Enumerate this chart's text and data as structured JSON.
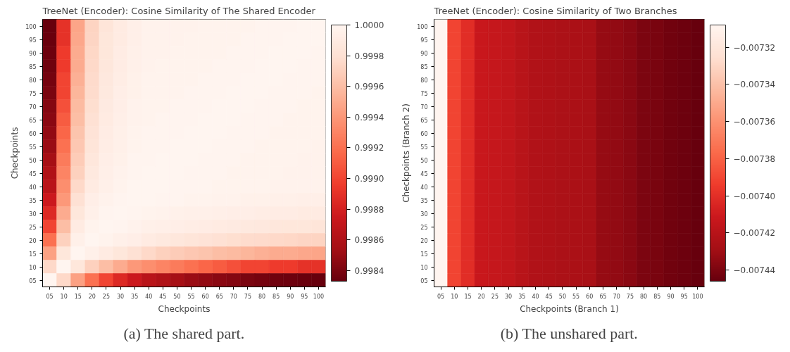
{
  "chart_data": [
    {
      "type": "heatmap",
      "title": "TreeNet (Encoder): Cosine Similarity of The Shared Encoder",
      "xlabel": "Checkpoints",
      "ylabel": "Checkpoints",
      "categories": [
        "05",
        "10",
        "15",
        "20",
        "25",
        "30",
        "35",
        "40",
        "45",
        "50",
        "55",
        "60",
        "65",
        "70",
        "75",
        "80",
        "85",
        "90",
        "95",
        "100"
      ],
      "y_categories": [
        "100",
        "95",
        "90",
        "85",
        "80",
        "75",
        "70",
        "65",
        "60",
        "55",
        "50",
        "45",
        "40",
        "35",
        "30",
        "25",
        "20",
        "15",
        "10",
        "05"
      ],
      "cells": [
        [
          0.99833,
          0.9989,
          0.99947,
          0.99972,
          0.99984,
          0.9999,
          0.99994,
          0.99997,
          0.99997,
          0.99997,
          0.99997,
          0.99998,
          0.99998,
          0.99998,
          0.99998,
          0.99999,
          0.99999,
          0.99999,
          1.0,
          1.0
        ],
        [
          0.99834,
          0.9989,
          0.99948,
          0.99973,
          0.99985,
          0.9999,
          0.99994,
          0.99997,
          0.99997,
          0.99997,
          0.99998,
          0.99998,
          0.99998,
          0.99998,
          0.99999,
          0.99999,
          0.99999,
          1.0,
          1.0,
          1.0
        ],
        [
          0.99835,
          0.99895,
          0.9995,
          0.99974,
          0.99985,
          0.99991,
          0.99995,
          0.99997,
          0.99997,
          0.99998,
          0.99998,
          0.99998,
          0.99998,
          0.99999,
          0.99999,
          0.99999,
          1.0,
          1.0,
          1.0,
          0.99999
        ],
        [
          0.99836,
          0.99895,
          0.9995,
          0.99975,
          0.99986,
          0.99991,
          0.99995,
          0.99997,
          0.99998,
          0.99998,
          0.99998,
          0.99998,
          0.99999,
          0.99999,
          0.99999,
          1.0,
          1.0,
          1.0,
          0.99999,
          0.99999
        ],
        [
          0.99838,
          0.999,
          0.99953,
          0.99976,
          0.99987,
          0.99992,
          0.99996,
          0.99998,
          0.99998,
          0.99998,
          0.99998,
          0.99999,
          0.99999,
          0.99999,
          1.0,
          1.0,
          1.0,
          0.99999,
          0.99999,
          0.99999
        ],
        [
          0.9984,
          0.999,
          0.99955,
          0.99977,
          0.99988,
          0.99993,
          0.99996,
          0.99998,
          0.99998,
          0.99998,
          0.99999,
          0.99999,
          0.99999,
          1.0,
          1.0,
          1.0,
          0.99999,
          0.99999,
          0.99999,
          0.99998
        ],
        [
          0.99843,
          0.99905,
          0.99958,
          0.99978,
          0.99989,
          0.99993,
          0.99997,
          0.99998,
          0.99998,
          0.99999,
          0.99999,
          0.99999,
          1.0,
          1.0,
          1.0,
          0.99999,
          0.99999,
          0.99999,
          0.99998,
          0.99998
        ],
        [
          0.99845,
          0.9991,
          0.9996,
          0.9998,
          0.9999,
          0.99994,
          0.99997,
          0.99998,
          0.99999,
          0.99999,
          0.99999,
          1.0,
          1.0,
          1.0,
          0.99999,
          0.99999,
          0.99999,
          0.99998,
          0.99998,
          0.99998
        ],
        [
          0.99848,
          0.99915,
          0.99963,
          0.99982,
          0.99991,
          0.99995,
          0.99998,
          0.99999,
          0.99999,
          0.99999,
          1.0,
          1.0,
          1.0,
          0.99999,
          0.99999,
          0.99999,
          0.99998,
          0.99998,
          0.99998,
          0.99998
        ],
        [
          0.9985,
          0.9992,
          0.99965,
          0.99984,
          0.99992,
          0.99995,
          0.99998,
          0.99999,
          0.99999,
          1.0,
          1.0,
          1.0,
          0.99999,
          0.99999,
          0.99999,
          0.99998,
          0.99998,
          0.99998,
          0.99998,
          0.99997
        ],
        [
          0.99855,
          0.99925,
          0.99968,
          0.99986,
          0.99993,
          0.99996,
          0.99999,
          0.99999,
          1.0,
          1.0,
          1.0,
          0.99999,
          0.99999,
          0.99999,
          0.99998,
          0.99998,
          0.99998,
          0.99998,
          0.99997,
          0.99997
        ],
        [
          0.9986,
          0.9993,
          0.9997,
          0.99988,
          0.99994,
          0.99997,
          0.99999,
          1.0,
          1.0,
          1.0,
          0.99999,
          0.99999,
          0.99999,
          0.99998,
          0.99998,
          0.99998,
          0.99998,
          0.99997,
          0.99997,
          0.99997
        ],
        [
          0.99865,
          0.99935,
          0.99975,
          0.9999,
          0.99995,
          0.99998,
          1.0,
          1.0,
          1.0,
          0.99999,
          0.99999,
          0.99999,
          0.99998,
          0.99998,
          0.99998,
          0.99998,
          0.99997,
          0.99997,
          0.99997,
          0.99997
        ],
        [
          0.99875,
          0.9994,
          0.9998,
          0.99993,
          0.99997,
          0.99999,
          1.0,
          1.0,
          0.99999,
          0.99999,
          0.99998,
          0.99998,
          0.99997,
          0.99997,
          0.99996,
          0.99996,
          0.99995,
          0.99995,
          0.99994,
          0.99994
        ],
        [
          0.99885,
          0.9995,
          0.99985,
          0.99995,
          0.99999,
          1.0,
          0.99999,
          0.99998,
          0.99997,
          0.99996,
          0.99995,
          0.99995,
          0.99994,
          0.99993,
          0.99993,
          0.99992,
          0.99991,
          0.99991,
          0.9999,
          0.9999
        ],
        [
          0.999,
          0.9996,
          0.9999,
          0.99998,
          1.0,
          0.99999,
          0.99997,
          0.99995,
          0.99994,
          0.99993,
          0.99992,
          0.99991,
          0.9999,
          0.99989,
          0.99988,
          0.99987,
          0.99986,
          0.99985,
          0.99985,
          0.99984
        ],
        [
          0.9992,
          0.9997,
          0.99995,
          1.0,
          0.99998,
          0.99995,
          0.99993,
          0.9999,
          0.99988,
          0.99986,
          0.99984,
          0.99982,
          0.9998,
          0.99978,
          0.99977,
          0.99976,
          0.99975,
          0.99974,
          0.99973,
          0.99972
        ],
        [
          0.99945,
          0.99985,
          1.0,
          0.99995,
          0.9999,
          0.99985,
          0.9998,
          0.99975,
          0.9997,
          0.99968,
          0.99965,
          0.99963,
          0.9996,
          0.99958,
          0.99955,
          0.99953,
          0.9995,
          0.9995,
          0.99948,
          0.99947
        ],
        [
          0.99975,
          1.0,
          0.99985,
          0.9997,
          0.9996,
          0.9995,
          0.9994,
          0.99935,
          0.9993,
          0.99925,
          0.9992,
          0.99915,
          0.9991,
          0.99905,
          0.999,
          0.999,
          0.99895,
          0.99895,
          0.9989,
          0.9989
        ],
        [
          1.0,
          0.99975,
          0.99945,
          0.9992,
          0.999,
          0.99885,
          0.99875,
          0.99865,
          0.9986,
          0.99855,
          0.9985,
          0.99848,
          0.99845,
          0.99843,
          0.9984,
          0.99838,
          0.99836,
          0.99835,
          0.99834,
          0.99833
        ]
      ],
      "clim": [
        0.99833,
        1.0
      ],
      "cticks": [
        {
          "value": 1.0,
          "label": "1.0000"
        },
        {
          "value": 0.9998,
          "label": "0.9998"
        },
        {
          "value": 0.9996,
          "label": "0.9996"
        },
        {
          "value": 0.9994,
          "label": "0.9994"
        },
        {
          "value": 0.9992,
          "label": "0.9992"
        },
        {
          "value": 0.999,
          "label": "0.9990"
        },
        {
          "value": 0.9988,
          "label": "0.9988"
        },
        {
          "value": 0.9986,
          "label": "0.9986"
        },
        {
          "value": 0.9984,
          "label": "0.9984"
        }
      ],
      "annotations": [
        "(a) The shared part."
      ]
    },
    {
      "type": "heatmap",
      "title": "TreeNet (Encoder): Cosine Similarity of Two Branches",
      "xlabel": "Checkpoints (Branch 1)",
      "ylabel": "Checkpoints (Branch 2)",
      "categories": [
        "05",
        "10",
        "15",
        "20",
        "25",
        "30",
        "35",
        "40",
        "45",
        "50",
        "55",
        "60",
        "65",
        "70",
        "75",
        "80",
        "85",
        "90",
        "95",
        "100"
      ],
      "y_categories": [
        "100",
        "95",
        "90",
        "85",
        "80",
        "75",
        "70",
        "65",
        "60",
        "55",
        "50",
        "45",
        "40",
        "35",
        "30",
        "25",
        "20",
        "15",
        "10",
        "05"
      ],
      "cells": [
        [
          -0.007308,
          -0.007391,
          -0.007401,
          -0.007413,
          -0.007414,
          -0.007416,
          -0.00742,
          -0.007423,
          -0.007424,
          -0.007425,
          -0.007426,
          -0.007427,
          -0.007433,
          -0.007434,
          -0.007436,
          -0.00744,
          -0.007441,
          -0.007443,
          -0.007444,
          -0.007446
        ],
        [
          -0.007308,
          -0.007391,
          -0.007401,
          -0.007413,
          -0.007414,
          -0.007416,
          -0.00742,
          -0.007423,
          -0.007424,
          -0.007425,
          -0.007426,
          -0.007427,
          -0.007433,
          -0.007434,
          -0.007436,
          -0.00744,
          -0.007441,
          -0.007443,
          -0.007444,
          -0.007446
        ],
        [
          -0.007308,
          -0.007391,
          -0.007401,
          -0.007413,
          -0.007414,
          -0.007416,
          -0.00742,
          -0.007423,
          -0.007424,
          -0.007425,
          -0.007426,
          -0.007427,
          -0.007433,
          -0.007434,
          -0.007436,
          -0.00744,
          -0.007441,
          -0.007443,
          -0.007444,
          -0.007446
        ],
        [
          -0.007308,
          -0.007391,
          -0.007401,
          -0.007413,
          -0.007414,
          -0.007416,
          -0.00742,
          -0.007423,
          -0.007424,
          -0.007425,
          -0.007426,
          -0.007427,
          -0.007433,
          -0.007434,
          -0.007436,
          -0.00744,
          -0.007441,
          -0.007443,
          -0.007444,
          -0.007446
        ],
        [
          -0.007308,
          -0.007391,
          -0.007401,
          -0.007413,
          -0.007414,
          -0.007416,
          -0.00742,
          -0.007423,
          -0.007424,
          -0.007425,
          -0.007426,
          -0.007427,
          -0.007433,
          -0.007434,
          -0.007436,
          -0.00744,
          -0.007441,
          -0.007443,
          -0.007444,
          -0.007446
        ],
        [
          -0.007308,
          -0.007391,
          -0.007401,
          -0.007413,
          -0.007414,
          -0.007416,
          -0.00742,
          -0.007423,
          -0.007424,
          -0.007425,
          -0.007426,
          -0.007427,
          -0.007433,
          -0.007434,
          -0.007436,
          -0.00744,
          -0.007441,
          -0.007443,
          -0.007444,
          -0.007446
        ],
        [
          -0.007308,
          -0.007391,
          -0.007401,
          -0.007413,
          -0.007414,
          -0.007416,
          -0.00742,
          -0.007423,
          -0.007424,
          -0.007425,
          -0.007426,
          -0.007427,
          -0.007433,
          -0.007434,
          -0.007436,
          -0.00744,
          -0.007441,
          -0.007443,
          -0.007444,
          -0.007446
        ],
        [
          -0.007308,
          -0.007391,
          -0.007401,
          -0.007413,
          -0.007414,
          -0.007416,
          -0.00742,
          -0.007423,
          -0.007424,
          -0.007425,
          -0.007426,
          -0.007427,
          -0.007433,
          -0.007434,
          -0.007436,
          -0.00744,
          -0.007441,
          -0.007443,
          -0.007444,
          -0.007446
        ],
        [
          -0.007308,
          -0.007391,
          -0.007401,
          -0.007413,
          -0.007414,
          -0.007416,
          -0.00742,
          -0.007423,
          -0.007424,
          -0.007425,
          -0.007426,
          -0.007427,
          -0.007433,
          -0.007434,
          -0.007436,
          -0.00744,
          -0.007441,
          -0.007443,
          -0.007444,
          -0.007446
        ],
        [
          -0.007308,
          -0.007391,
          -0.007401,
          -0.007413,
          -0.007414,
          -0.007416,
          -0.00742,
          -0.007423,
          -0.007424,
          -0.007425,
          -0.007426,
          -0.007427,
          -0.007433,
          -0.007434,
          -0.007436,
          -0.00744,
          -0.007441,
          -0.007443,
          -0.007444,
          -0.007446
        ],
        [
          -0.007308,
          -0.007391,
          -0.007401,
          -0.007413,
          -0.007414,
          -0.007416,
          -0.00742,
          -0.007423,
          -0.007424,
          -0.007425,
          -0.007426,
          -0.007427,
          -0.007433,
          -0.007434,
          -0.007436,
          -0.00744,
          -0.007441,
          -0.007443,
          -0.007444,
          -0.007446
        ],
        [
          -0.007308,
          -0.007391,
          -0.007401,
          -0.007413,
          -0.007414,
          -0.007416,
          -0.00742,
          -0.007423,
          -0.007424,
          -0.007425,
          -0.007426,
          -0.007427,
          -0.007433,
          -0.007434,
          -0.007436,
          -0.00744,
          -0.007441,
          -0.007443,
          -0.007444,
          -0.007446
        ],
        [
          -0.007308,
          -0.007391,
          -0.007401,
          -0.007413,
          -0.007414,
          -0.007416,
          -0.00742,
          -0.007423,
          -0.007424,
          -0.007425,
          -0.007426,
          -0.007427,
          -0.007433,
          -0.007434,
          -0.007436,
          -0.00744,
          -0.007441,
          -0.007443,
          -0.007444,
          -0.007446
        ],
        [
          -0.007308,
          -0.007391,
          -0.007401,
          -0.007413,
          -0.007414,
          -0.007416,
          -0.00742,
          -0.007423,
          -0.007424,
          -0.007425,
          -0.007426,
          -0.007427,
          -0.007433,
          -0.007434,
          -0.007436,
          -0.00744,
          -0.007441,
          -0.007443,
          -0.007444,
          -0.007446
        ],
        [
          -0.007308,
          -0.007391,
          -0.007401,
          -0.007413,
          -0.007414,
          -0.007416,
          -0.00742,
          -0.007423,
          -0.007424,
          -0.007425,
          -0.007426,
          -0.007427,
          -0.007433,
          -0.007434,
          -0.007436,
          -0.00744,
          -0.007441,
          -0.007443,
          -0.007444,
          -0.007446
        ],
        [
          -0.007308,
          -0.007391,
          -0.007401,
          -0.007413,
          -0.007414,
          -0.007416,
          -0.00742,
          -0.007423,
          -0.007424,
          -0.007425,
          -0.007426,
          -0.007427,
          -0.007433,
          -0.007434,
          -0.007436,
          -0.00744,
          -0.007441,
          -0.007443,
          -0.007444,
          -0.007446
        ],
        [
          -0.007308,
          -0.007391,
          -0.007401,
          -0.007413,
          -0.007414,
          -0.007416,
          -0.00742,
          -0.007423,
          -0.007424,
          -0.007425,
          -0.007426,
          -0.007427,
          -0.007433,
          -0.007434,
          -0.007436,
          -0.00744,
          -0.007441,
          -0.007443,
          -0.007444,
          -0.007446
        ],
        [
          -0.007308,
          -0.007391,
          -0.007401,
          -0.007413,
          -0.007414,
          -0.007416,
          -0.00742,
          -0.007423,
          -0.007424,
          -0.007425,
          -0.007426,
          -0.007427,
          -0.007433,
          -0.007434,
          -0.007436,
          -0.00744,
          -0.007441,
          -0.007443,
          -0.007444,
          -0.007446
        ],
        [
          -0.007308,
          -0.007391,
          -0.007401,
          -0.007413,
          -0.007414,
          -0.007416,
          -0.00742,
          -0.007423,
          -0.007424,
          -0.007425,
          -0.007426,
          -0.007427,
          -0.007433,
          -0.007434,
          -0.007436,
          -0.00744,
          -0.007441,
          -0.007443,
          -0.007444,
          -0.007446
        ],
        [
          -0.007308,
          -0.007391,
          -0.007401,
          -0.007413,
          -0.007414,
          -0.007416,
          -0.00742,
          -0.007423,
          -0.007424,
          -0.007425,
          -0.007426,
          -0.007427,
          -0.007433,
          -0.007434,
          -0.007436,
          -0.00744,
          -0.007441,
          -0.007443,
          -0.007444,
          -0.007446
        ]
      ],
      "clim": [
        -0.007446,
        -0.007308
      ],
      "cticks": [
        {
          "value": -0.00732,
          "label": "−0.00732"
        },
        {
          "value": -0.00734,
          "label": "−0.00734"
        },
        {
          "value": -0.00736,
          "label": "−0.00736"
        },
        {
          "value": -0.00738,
          "label": "−0.00738"
        },
        {
          "value": -0.0074,
          "label": "−0.00740"
        },
        {
          "value": -0.00742,
          "label": "−0.00742"
        },
        {
          "value": -0.00744,
          "label": "−0.00744"
        }
      ],
      "annotations": [
        "(b) The unshared part."
      ]
    }
  ]
}
